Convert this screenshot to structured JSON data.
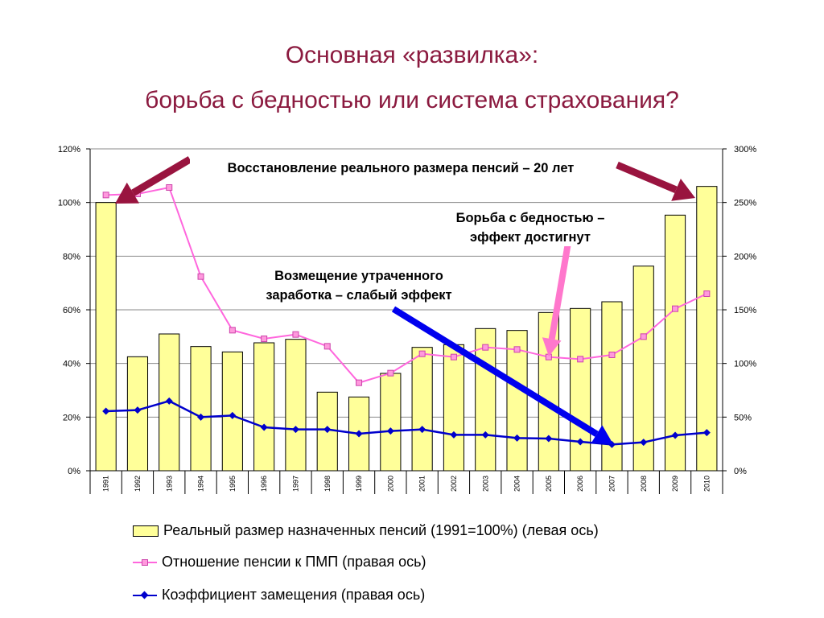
{
  "title_line1": "Основная «развилка»:",
  "title_line2": "борьба с бедностью или система страхования?",
  "chart_data": {
    "type": "bar",
    "categories": [
      "1991",
      "1992",
      "1993",
      "1994",
      "1995",
      "1996",
      "1997",
      "1998",
      "1999",
      "2000",
      "2001",
      "2002",
      "2003",
      "2004",
      "2005",
      "2006",
      "2007",
      "2008",
      "2009",
      "2010"
    ],
    "left_axis": {
      "ticks": [
        "0%",
        "20%",
        "40%",
        "60%",
        "80%",
        "100%",
        "120%"
      ],
      "ylim": [
        0,
        120
      ]
    },
    "right_axis": {
      "ticks": [
        "0%",
        "50%",
        "100%",
        "150%",
        "200%",
        "250%",
        "300%"
      ],
      "ylim": [
        0,
        300
      ]
    },
    "grid": true,
    "series": [
      {
        "name": "Реальный размер назначенных пенсий (1991=100%) (левая ось)",
        "type": "bar",
        "axis": "left",
        "color": "#ffff99",
        "values": [
          100,
          42.5,
          51,
          46.3,
          44.3,
          47.7,
          49,
          29.3,
          27.5,
          36.3,
          46,
          47,
          53,
          52.3,
          59,
          60.5,
          63,
          76.3,
          95.3,
          106
        ]
      },
      {
        "name": "Отношение пенсии к ПМП (правая ось)",
        "type": "line",
        "axis": "right",
        "color": "#ff66dd",
        "marker": "square",
        "values": [
          257,
          258,
          264,
          181,
          131,
          123,
          127,
          116,
          82,
          91,
          109,
          106,
          115,
          113,
          106,
          104,
          108,
          125,
          151,
          165
        ]
      },
      {
        "name": "Коэффициент замещения (правая ось)",
        "type": "line",
        "axis": "right",
        "color": "#0000cc",
        "marker": "diamond",
        "values": [
          55.5,
          56.5,
          65,
          50,
          51.5,
          40.5,
          38.5,
          38.5,
          34.5,
          37,
          38.5,
          33.5,
          33.5,
          30.5,
          30,
          27,
          24.5,
          26.5,
          33,
          35.5
        ]
      }
    ],
    "annotations": [
      "Восстановление реального размера пенсий – 20 лет",
      "Борьба с бедностью –",
      "эффект достигнут",
      "Возмещение утраченного",
      "заработка – слабый эффект"
    ],
    "legend_position": "bottom"
  },
  "colors": {
    "title": "#8b1a3f",
    "arrow_dark_red": "#99143f",
    "arrow_pink": "#ff77cc",
    "arrow_blue": "#0000ee"
  }
}
